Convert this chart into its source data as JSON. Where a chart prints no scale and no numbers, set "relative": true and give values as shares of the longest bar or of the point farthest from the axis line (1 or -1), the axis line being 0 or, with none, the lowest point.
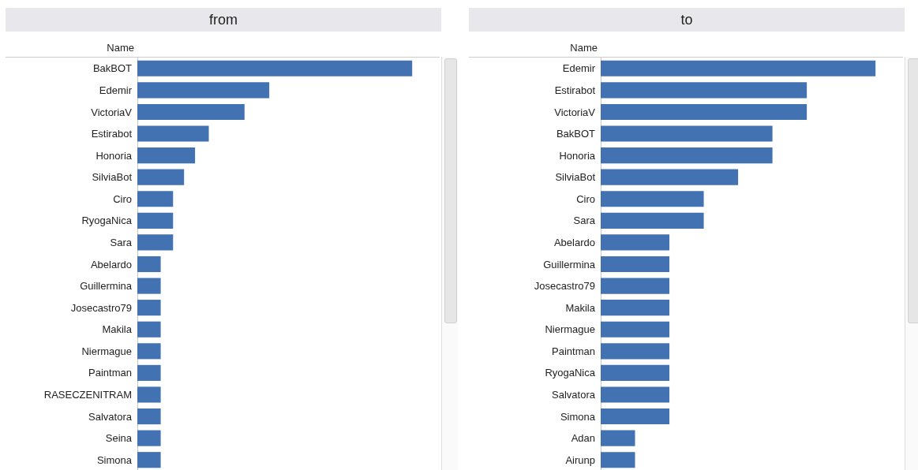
{
  "chart_data": [
    {
      "type": "bar",
      "orientation": "horizontal",
      "relative": true,
      "title": "from",
      "ylabel": "Name",
      "color": "#4272b2",
      "categories": [
        "BakBOT",
        "Edemir",
        "VictoriaV",
        "Estirabot",
        "Honoria",
        "SilviaBot",
        "Ciro",
        "RyogaNica",
        "Sara",
        "Abelardo",
        "Guillermina",
        "Josecastro79",
        "Makila",
        "Niermague",
        "Paintman",
        "RASECZENITRAM",
        "Salvatora",
        "Seina",
        "Simona"
      ],
      "values": [
        1,
        0.48,
        0.39,
        0.26,
        0.21,
        0.17,
        0.13,
        0.13,
        0.13,
        0.085,
        0.085,
        0.085,
        0.085,
        0.085,
        0.085,
        0.085,
        0.085,
        0.085,
        0.085
      ]
    },
    {
      "type": "bar",
      "orientation": "horizontal",
      "relative": true,
      "title": "to",
      "ylabel": "Name",
      "color": "#4272b2",
      "categories": [
        "Edemir",
        "Estirabot",
        "VictoriaV",
        "BakBOT",
        "Honoria",
        "SilviaBot",
        "Ciro",
        "Sara",
        "Abelardo",
        "Guillermina",
        "Josecastro79",
        "Makila",
        "Niermague",
        "Paintman",
        "RyogaNica",
        "Salvatora",
        "Simona",
        "Adan",
        "Airunp"
      ],
      "values": [
        1,
        0.75,
        0.75,
        0.625,
        0.625,
        0.5,
        0.375,
        0.375,
        0.25,
        0.25,
        0.25,
        0.25,
        0.25,
        0.25,
        0.25,
        0.25,
        0.25,
        0.125,
        0.125
      ]
    }
  ]
}
